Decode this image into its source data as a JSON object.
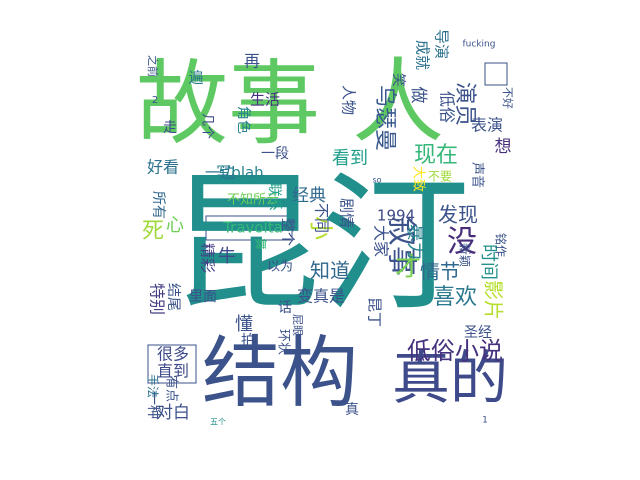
{
  "word_cloud": {
    "words": [
      {
        "text": "昆汀",
        "color": "#218f8c"
      },
      {
        "text": "故事",
        "color": "#5ec962"
      },
      {
        "text": "人",
        "color": "#5ec962"
      },
      {
        "text": "结构",
        "color": "#3b528b"
      },
      {
        "text": "真的",
        "color": "#3e4a89"
      },
      {
        "text": "低俗小说",
        "color": "#46327e"
      },
      {
        "text": "喜欢",
        "color": "#2a788e"
      },
      {
        "text": "影片",
        "color": "#b5de2b"
      },
      {
        "text": "情节",
        "color": "#31688e"
      },
      {
        "text": "叙事",
        "color": "#3b528b"
      },
      {
        "text": "乌瑟曼",
        "color": "#38598c"
      },
      {
        "text": "没",
        "color": "#472c7a"
      },
      {
        "text": "知道",
        "color": "#31688e"
      },
      {
        "text": "时间",
        "color": "#21918c"
      },
      {
        "text": "发现",
        "color": "#3b528b"
      },
      {
        "text": "现在",
        "color": "#35b779"
      },
      {
        "text": "看到",
        "color": "#1f9e89"
      },
      {
        "text": "经典",
        "color": "#31688e"
      },
      {
        "text": "演员",
        "color": "#3b528b"
      },
      {
        "text": "一边",
        "color": "#2c728e"
      },
      {
        "text": "生活",
        "color": "#46337e"
      },
      {
        "text": "再",
        "color": "#3b528b"
      },
      {
        "text": "遍",
        "color": "#2a788e"
      },
      {
        "text": "几个",
        "color": "#3e4a89"
      },
      {
        "text": "好看",
        "color": "#2c728e"
      },
      {
        "text": "死",
        "color": "#a0da39"
      },
      {
        "text": "所有",
        "color": "#31688e"
      },
      {
        "text": "心",
        "color": "#6ece58"
      },
      {
        "text": "特别",
        "color": "#433e85"
      },
      {
        "text": "精彩",
        "color": "#433e85"
      },
      {
        "text": "牛",
        "color": "#3e4a89"
      },
      {
        "text": "里面",
        "color": "#3b528b"
      },
      {
        "text": "懂",
        "color": "#3b528b"
      },
      {
        "text": "很多",
        "color": "#3e4a89"
      },
      {
        "text": "直到",
        "color": "#3e4a89"
      },
      {
        "text": "对白",
        "color": "#3b528b"
      },
      {
        "text": "一种",
        "color": "#3b528b"
      },
      {
        "text": "角色",
        "color": "#26828e"
      },
      {
        "text": "人物",
        "color": "#3b528b"
      },
      {
        "text": "做",
        "color": "#3b528b"
      },
      {
        "text": "笑",
        "color": "#3b528b"
      },
      {
        "text": "成就",
        "color": "#2c728e"
      },
      {
        "text": "导演",
        "color": "#2c728e"
      },
      {
        "text": "低俗",
        "color": "#3b528b"
      },
      {
        "text": "表演",
        "color": "#3b528b"
      },
      {
        "text": "想",
        "color": "#472d7b"
      },
      {
        "text": "圣经",
        "color": "#3b528b"
      },
      {
        "text": "小",
        "color": "#b5de2b"
      },
      {
        "text": "才",
        "color": "#7ad151"
      },
      {
        "text": "暴力",
        "color": "#26828e"
      },
      {
        "text": "大家",
        "color": "#3b528b"
      },
      {
        "text": "1994",
        "color": "#3e4a89"
      },
      {
        "text": "Travolta",
        "color": "#35b779"
      },
      {
        "text": "不知所云",
        "color": "#6ece58"
      },
      {
        "text": "剧情",
        "color": "#3b528b"
      },
      {
        "text": "不同",
        "color": "#3b528b"
      },
      {
        "text": "变真是",
        "color": "#3b528b"
      },
      {
        "text": "话",
        "color": "#3b528b"
      },
      {
        "text": "环状",
        "color": "#3b528b"
      },
      {
        "text": "昆丁",
        "color": "#3b528b"
      },
      {
        "text": "联系",
        "color": "#1f9e89"
      },
      {
        "text": "写blah",
        "color": "#26828e"
      },
      {
        "text": "一段",
        "color": "#3b528b"
      },
      {
        "text": "以为",
        "color": "#3b528b"
      },
      {
        "text": "舞",
        "color": "#35b779"
      },
      {
        "text": "整个",
        "color": "#3b528b"
      },
      {
        "text": "拍",
        "color": "#3b528b"
      },
      {
        "text": "结尾",
        "color": "#3b528b"
      },
      {
        "text": "有点",
        "color": "#3b528b"
      },
      {
        "text": "手法",
        "color": "#2c728e"
      },
      {
        "text": "真",
        "color": "#3b528b"
      },
      {
        "text": "大致",
        "color": "#fde725"
      },
      {
        "text": "不要",
        "color": "#a0da39"
      },
      {
        "text": "声音",
        "color": "#3b528b"
      },
      {
        "text": "新颖",
        "color": "#3b528b"
      },
      {
        "text": "铭作",
        "color": "#3b528b"
      },
      {
        "text": "不好",
        "color": "#3b528b"
      },
      {
        "text": "走",
        "color": "#3e4a89"
      },
      {
        "text": "之前",
        "color": "#3b528b"
      },
      {
        "text": "fucking",
        "color": "#3b528b"
      },
      {
        "text": "屁眼",
        "color": "#3b528b"
      },
      {
        "text": "五个",
        "color": "#21918c"
      },
      {
        "text": "2",
        "color": "#3b528b"
      },
      {
        "text": "1",
        "color": "#3b528b"
      },
      {
        "text": "so",
        "color": "#3b528b"
      }
    ]
  }
}
